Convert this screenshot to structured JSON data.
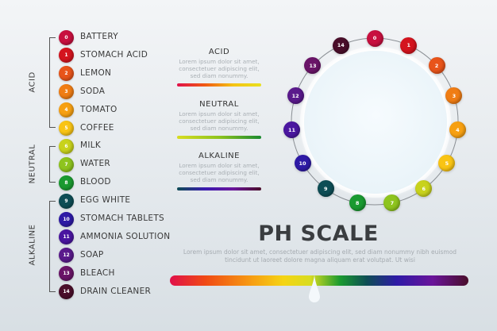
{
  "groups": [
    {
      "label": "ACID"
    },
    {
      "label": "NEUTRAL"
    },
    {
      "label": "ALKALINE"
    }
  ],
  "items": [
    {
      "ph": "0",
      "label": "BATTERY",
      "color": "#c8103f"
    },
    {
      "ph": "1",
      "label": "STOMACH ACID",
      "color": "#d4141e"
    },
    {
      "ph": "2",
      "label": "LEMON",
      "color": "#e8541a"
    },
    {
      "ph": "3",
      "label": "SODA",
      "color": "#f07d14"
    },
    {
      "ph": "4",
      "label": "TOMATO",
      "color": "#f7a012"
    },
    {
      "ph": "5",
      "label": "COFFEE",
      "color": "#f9c414"
    },
    {
      "ph": "6",
      "label": "MILK",
      "color": "#c8d21c"
    },
    {
      "ph": "7",
      "label": "WATER",
      "color": "#8ec41e"
    },
    {
      "ph": "8",
      "label": "BLOOD",
      "color": "#1a9a30"
    },
    {
      "ph": "9",
      "label": "EGG WHITE",
      "color": "#0e4d55"
    },
    {
      "ph": "10",
      "label": "STOMACH TABLETS",
      "color": "#2e1aa6"
    },
    {
      "ph": "11",
      "label": "AMMONIA SOLUTION",
      "color": "#4a16a0"
    },
    {
      "ph": "12",
      "label": "SOAP",
      "color": "#5a1a8c"
    },
    {
      "ph": "13",
      "label": "BLEACH",
      "color": "#6a1468"
    },
    {
      "ph": "14",
      "label": "DRAIN CLEANER",
      "color": "#4a0e2a"
    }
  ],
  "panels": [
    {
      "title": "ACID",
      "text": "Lorem ipsum dolor sit amet, consectetuer adipiscing  elit, sed diam nonummy.",
      "gradient": [
        "#e0104a",
        "#f05a14",
        "#f5c414",
        "#e8e020"
      ]
    },
    {
      "title": "NEUTRAL",
      "text": "Lorem ipsum dolor sit amet, consectetuer adipiscing  elit, sed diam nonummy.",
      "gradient": [
        "#d8dc20",
        "#8ec41e",
        "#1a8a30"
      ]
    },
    {
      "title": "ALKALINE",
      "text": "Lorem ipsum dolor sit amet, consectetuer adipiscing  elit, sed diam nonummy.",
      "gradient": [
        "#0e4d55",
        "#3a1ab0",
        "#6a149a",
        "#4a0e2a"
      ]
    }
  ],
  "title": "PH SCALE",
  "description": "Lorem ipsum dolor sit amet, consectetuer adipiscing elit, sed diam nonummy nibh euismod tincidunt ut laoreet dolore magna aliquam erat volutpat. Ut wisi"
}
